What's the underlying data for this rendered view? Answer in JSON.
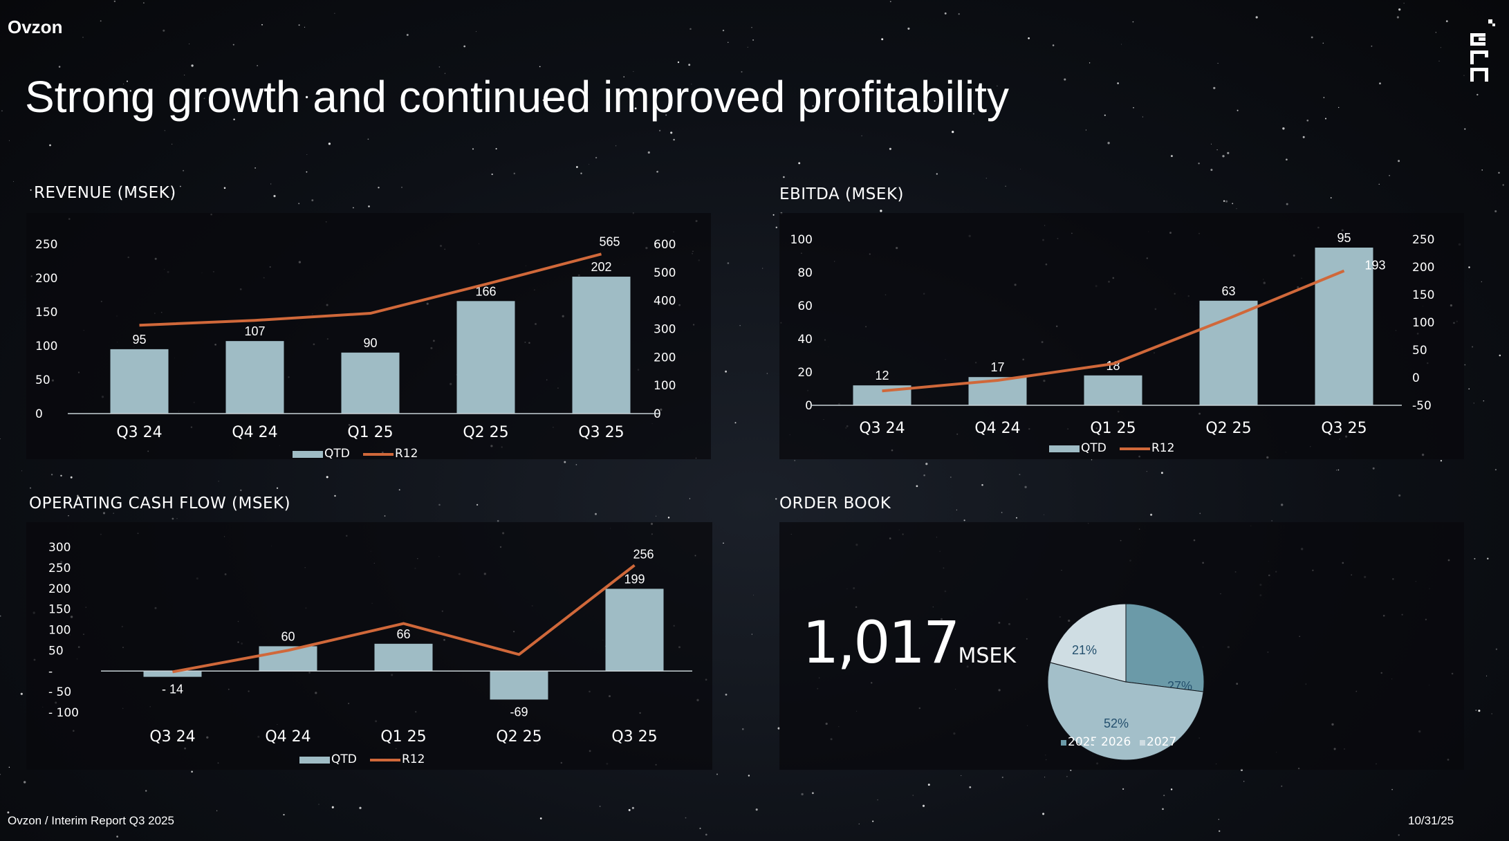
{
  "header": {
    "brand": "Ovzon",
    "title": "Strong growth and continued improved profitability"
  },
  "footer": {
    "source": "Ovzon / Interim Report Q3 2025",
    "date": "10/31/25"
  },
  "colors": {
    "bar": "#9fbcc5",
    "line": "#d0683a",
    "pie_2025": "#6b9aa8",
    "pie_2026": "#a3bfc9",
    "pie_2027": "#cfdde3"
  },
  "chart_data": [
    {
      "id": "revenue",
      "type": "bar",
      "title": "REVENUE (MSEK)",
      "categories": [
        "Q3 24",
        "Q4 24",
        "Q1 25",
        "Q2 25",
        "Q3 25"
      ],
      "series": [
        {
          "name": "QTD",
          "type": "bar",
          "axis": "left",
          "values": [
            95,
            107,
            90,
            166,
            202
          ],
          "labels": [
            "95",
            "107",
            "90",
            "166",
            "202"
          ]
        },
        {
          "name": "R12",
          "type": "line",
          "axis": "right",
          "values": [
            313,
            330,
            355,
            458,
            565
          ],
          "labels": [
            "",
            "",
            "",
            "",
            "565"
          ]
        }
      ],
      "left_ticks": [
        "0",
        "50",
        "100",
        "150",
        "200",
        "250"
      ],
      "right_ticks": [
        "0",
        "100",
        "200",
        "300",
        "400",
        "500",
        "600"
      ],
      "ylim_left": [
        0,
        250
      ],
      "ylim_right": [
        0,
        600
      ],
      "legend": [
        "QTD",
        "R12"
      ]
    },
    {
      "id": "ebitda",
      "type": "bar",
      "title": "EBITDA (MSEK)",
      "categories": [
        "Q3 24",
        "Q4 24",
        "Q1 25",
        "Q2 25",
        "Q3 25"
      ],
      "series": [
        {
          "name": "QTD",
          "type": "bar",
          "axis": "left",
          "values": [
            12,
            17,
            18,
            63,
            95
          ],
          "labels": [
            "12",
            "17",
            "18",
            "63",
            "95"
          ]
        },
        {
          "name": "R12",
          "type": "line",
          "axis": "right",
          "values": [
            -24,
            -5,
            25,
            107,
            193
          ],
          "labels": [
            "",
            "",
            "",
            "",
            "193"
          ]
        }
      ],
      "left_ticks": [
        "0",
        "20",
        "40",
        "60",
        "80",
        "100"
      ],
      "right_ticks": [
        "-50",
        "0",
        "50",
        "100",
        "150",
        "200",
        "250"
      ],
      "ylim_left": [
        0,
        100
      ],
      "ylim_right": [
        -50,
        250
      ],
      "legend": [
        "QTD",
        "R12"
      ]
    },
    {
      "id": "cashflow",
      "type": "bar",
      "title": "OPERATING CASH FLOW (MSEK)",
      "categories": [
        "Q3 24",
        "Q4 24",
        "Q1 25",
        "Q2 25",
        "Q3 25"
      ],
      "series": [
        {
          "name": "QTD",
          "type": "bar",
          "axis": "left",
          "values": [
            -14,
            60,
            66,
            -69,
            199
          ],
          "labels": [
            "- 14",
            "60",
            "66",
            "-69",
            "199"
          ]
        },
        {
          "name": "R12",
          "type": "line",
          "axis": "left",
          "values": [
            -2,
            50,
            115,
            40,
            256
          ],
          "labels": [
            "",
            "",
            "",
            "",
            "256"
          ]
        }
      ],
      "left_ticks": [
        "- 100",
        "- 50",
        "-",
        "50",
        "100",
        "150",
        "200",
        "250",
        "300"
      ],
      "ylim_left": [
        -100,
        300
      ],
      "legend": [
        "QTD",
        "R12"
      ]
    },
    {
      "id": "orderbook",
      "type": "pie",
      "title": "ORDER BOOK",
      "total_value": "1,017",
      "total_unit": "MSEK",
      "slices": [
        {
          "label": "2025",
          "value": 27,
          "text": "27%"
        },
        {
          "label": "2026",
          "value": 52,
          "text": "52%"
        },
        {
          "label": "2027",
          "value": 21,
          "text": "21%"
        }
      ]
    }
  ]
}
